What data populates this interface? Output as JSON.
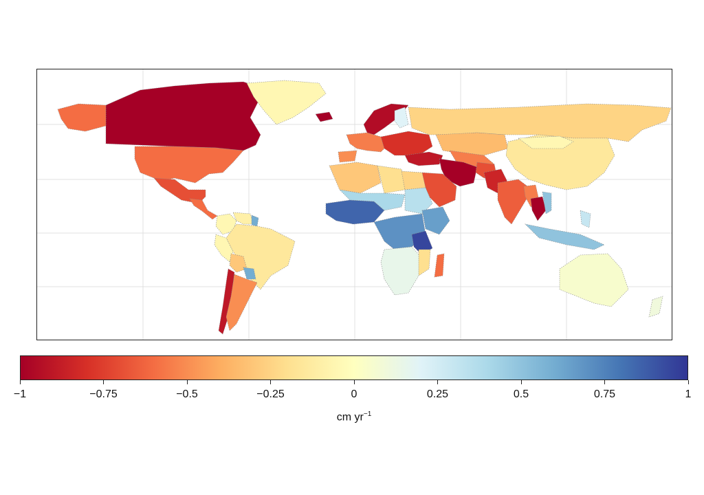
{
  "colorbar": {
    "min": -1,
    "max": 1,
    "colors": [
      "#a50026",
      "#d73027",
      "#f46d43",
      "#fdae61",
      "#fee090",
      "#ffffbf",
      "#e0f3f8",
      "#abd9e9",
      "#74add1",
      "#4575b4",
      "#313695"
    ],
    "ticks": [
      {
        "value": -1,
        "label": "−1"
      },
      {
        "value": -0.75,
        "label": "−0.75"
      },
      {
        "value": -0.5,
        "label": "−0.5"
      },
      {
        "value": -0.25,
        "label": "−0.25"
      },
      {
        "value": 0,
        "label": "0"
      },
      {
        "value": 0.25,
        "label": "0.25"
      },
      {
        "value": 0.5,
        "label": "0.5"
      },
      {
        "value": 0.75,
        "label": "0.75"
      },
      {
        "value": 1,
        "label": "1"
      }
    ],
    "unit_base": "cm yr",
    "unit_exp": "−1"
  },
  "map": {
    "projection": "equirectangular",
    "graticule": true,
    "regions": [
      {
        "name": "Canada",
        "value": -1.0
      },
      {
        "name": "Alaska",
        "value": -0.6
      },
      {
        "name": "Greenland",
        "value": -0.05
      },
      {
        "name": "United States",
        "value": -0.6
      },
      {
        "name": "Mexico",
        "value": -0.7
      },
      {
        "name": "Central America",
        "value": -0.6
      },
      {
        "name": "Colombia",
        "value": -0.05
      },
      {
        "name": "Venezuela",
        "value": -0.1
      },
      {
        "name": "Guyana",
        "value": 0.6
      },
      {
        "name": "Brazil",
        "value": -0.15
      },
      {
        "name": "Peru",
        "value": -0.05
      },
      {
        "name": "Bolivia",
        "value": -0.3
      },
      {
        "name": "Paraguay",
        "value": 0.6
      },
      {
        "name": "Chile",
        "value": -0.9
      },
      {
        "name": "Argentina",
        "value": -0.5
      },
      {
        "name": "Iceland",
        "value": -1.0
      },
      {
        "name": "Scandinavia",
        "value": -0.95
      },
      {
        "name": "Finland",
        "value": 0.2
      },
      {
        "name": "Western Europe",
        "value": -0.55
      },
      {
        "name": "Spain",
        "value": -0.5
      },
      {
        "name": "Eastern Europe",
        "value": -0.8
      },
      {
        "name": "Turkey",
        "value": -0.9
      },
      {
        "name": "Russia",
        "value": -0.25
      },
      {
        "name": "Kazakhstan",
        "value": -0.35
      },
      {
        "name": "Central Asia",
        "value": -0.55
      },
      {
        "name": "Iran",
        "value": -1.0
      },
      {
        "name": "Afghanistan",
        "value": -0.7
      },
      {
        "name": "Pakistan",
        "value": -0.85
      },
      {
        "name": "Saudi Arabia",
        "value": -0.7
      },
      {
        "name": "India",
        "value": -0.65
      },
      {
        "name": "China",
        "value": -0.15
      },
      {
        "name": "Mongolia",
        "value": -0.05
      },
      {
        "name": "Myanmar",
        "value": -0.55
      },
      {
        "name": "Thailand",
        "value": -1.0
      },
      {
        "name": "Vietnam",
        "value": 0.5
      },
      {
        "name": "Indonesia",
        "value": 0.5
      },
      {
        "name": "Philippines",
        "value": 0.3
      },
      {
        "name": "Australia",
        "value": 0.05
      },
      {
        "name": "New Zealand",
        "value": 0.1
      },
      {
        "name": "Algeria",
        "value": -0.3
      },
      {
        "name": "Libya",
        "value": -0.2
      },
      {
        "name": "Egypt",
        "value": -0.25
      },
      {
        "name": "West Africa",
        "value": 0.85
      },
      {
        "name": "Sahel",
        "value": 0.4
      },
      {
        "name": "Sudan",
        "value": 0.35
      },
      {
        "name": "Ethiopia",
        "value": 0.65
      },
      {
        "name": "Central Africa",
        "value": 0.7
      },
      {
        "name": "Tanzania",
        "value": 0.95
      },
      {
        "name": "Southern Africa",
        "value": 0.15
      },
      {
        "name": "Mozambique",
        "value": -0.2
      },
      {
        "name": "Madagascar",
        "value": -0.6
      }
    ]
  }
}
